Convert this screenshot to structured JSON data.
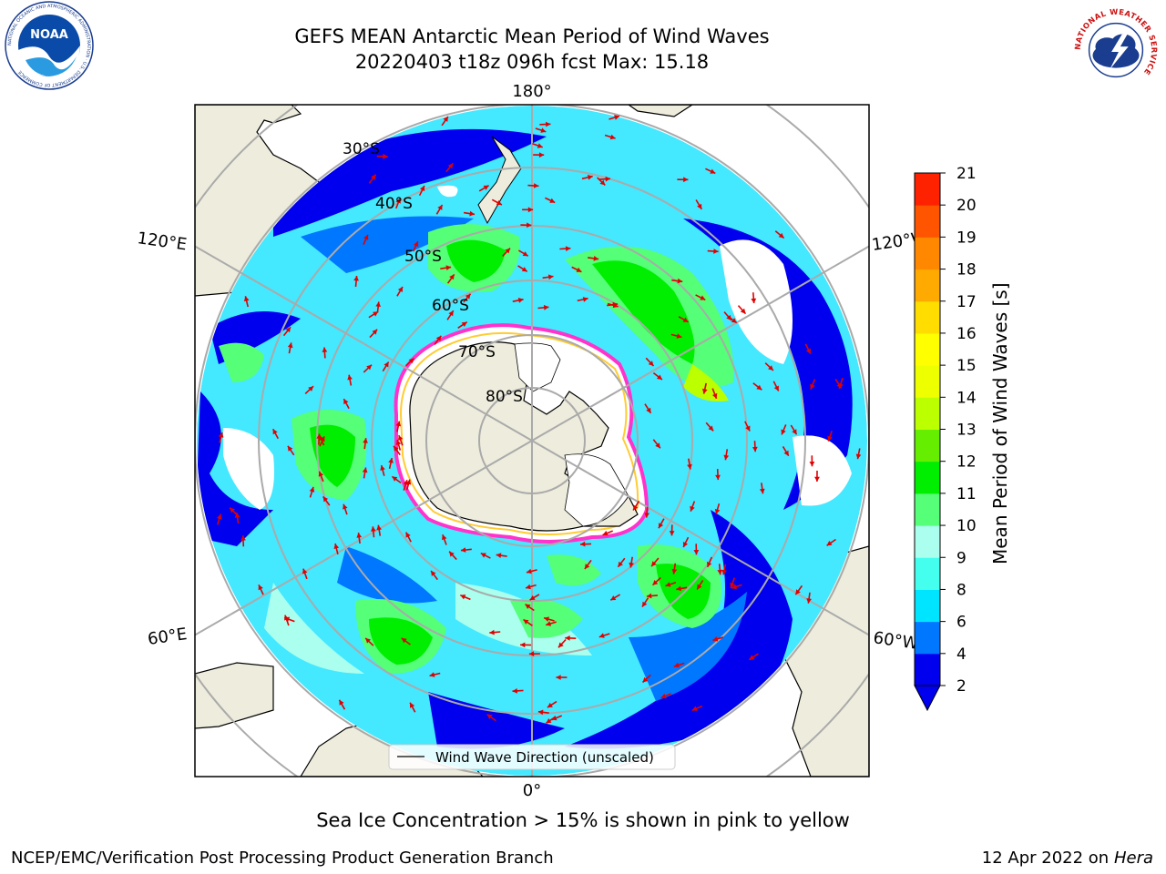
{
  "header": {
    "title_line1": "GEFS MEAN Antarctic Mean Period of Wind Waves",
    "title_line2": "20220403 t18z 096h fcst   Max: 15.18"
  },
  "logos": {
    "left_text": "NOAA",
    "left_ring_text": "NATIONAL OCEANIC AND ATMOSPHERIC ADMINISTRATION · U.S. DEPARTMENT OF COMMERCE",
    "right_ring_text": "NATIONAL WEATHER SERVICE"
  },
  "map": {
    "longitude_labels": {
      "top": "180°",
      "bottom": "0°",
      "upper_left": "120°E",
      "lower_left": "60°E",
      "upper_right": "120°W",
      "lower_right": "60°W"
    },
    "latitude_labels": [
      "30°S",
      "40°S",
      "50°S",
      "60°S",
      "70°S",
      "80°S"
    ],
    "legend_label": "Wind Wave Direction (unscaled)"
  },
  "colorbar": {
    "label": "Mean Period of Wind Waves [s]",
    "ticks": [
      "2",
      "4",
      "6",
      "8",
      "9",
      "10",
      "11",
      "12",
      "13",
      "14",
      "15",
      "16",
      "17",
      "18",
      "19",
      "20",
      "21"
    ],
    "colors": [
      "#0000ee",
      "#0077ff",
      "#00e5ff",
      "#44ffee",
      "#aaffee",
      "#55ff77",
      "#00ee00",
      "#66ee00",
      "#bbff00",
      "#eeff00",
      "#ffff00",
      "#ffdd00",
      "#ffaa00",
      "#ff8800",
      "#ff5500",
      "#ff2200"
    ],
    "extend_color": "#0000ee"
  },
  "footer": {
    "note": "Sea Ice Concentration > 15% is shown in pink to yellow",
    "credit_left": "NCEP/EMC/Verification Post Processing Product Generation Branch",
    "credit_right_date": "12 Apr 2022 on ",
    "credit_right_host": "Hera"
  }
}
